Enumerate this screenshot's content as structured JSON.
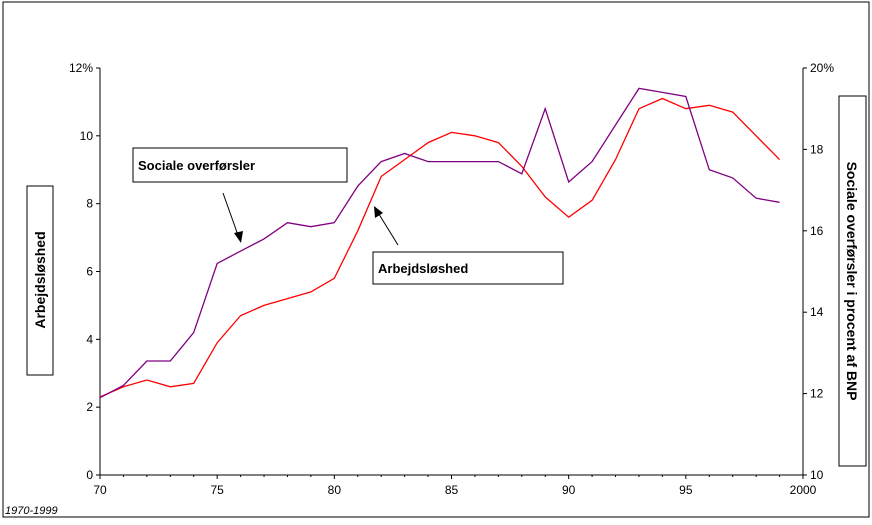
{
  "chart_data": {
    "type": "line",
    "x": [
      70,
      71,
      72,
      73,
      74,
      75,
      76,
      77,
      78,
      79,
      80,
      81,
      82,
      83,
      84,
      85,
      86,
      87,
      88,
      89,
      90,
      91,
      92,
      93,
      94,
      95,
      96,
      97,
      98,
      99
    ],
    "xlim": [
      70,
      100
    ],
    "x_ticks": [
      "70",
      "75",
      "80",
      "85",
      "90",
      "95",
      "2000"
    ],
    "y_left": {
      "label": "Arbejdsløshed",
      "lim": [
        0,
        12
      ],
      "ticks": [
        "0",
        "2",
        "4",
        "6",
        "8",
        "10",
        "12%"
      ]
    },
    "y_right": {
      "label": "Sociale overførsler i procent af BNP",
      "lim": [
        10,
        20
      ],
      "ticks": [
        "10",
        "12",
        "14",
        "16",
        "18",
        "20%"
      ]
    },
    "series": [
      {
        "name": "Arbejdsløshed",
        "axis": "left",
        "color": "#ff0000",
        "values": [
          2.3,
          2.6,
          2.8,
          2.6,
          2.7,
          3.9,
          4.7,
          5.0,
          5.2,
          5.4,
          5.8,
          7.2,
          8.8,
          9.3,
          9.8,
          10.1,
          10.0,
          9.8,
          9.1,
          8.2,
          7.6,
          8.1,
          9.3,
          10.8,
          11.1,
          10.8,
          10.9,
          10.7,
          10.0,
          9.3
        ]
      },
      {
        "name": "Sociale overførsler",
        "axis": "right",
        "color": "#800080",
        "values": [
          11.9,
          12.2,
          12.8,
          12.8,
          13.5,
          15.2,
          15.5,
          15.8,
          16.2,
          16.1,
          16.2,
          17.1,
          17.7,
          17.9,
          17.7,
          17.7,
          17.7,
          17.7,
          17.4,
          19.0,
          17.2,
          17.7,
          18.6,
          19.5,
          19.4,
          19.3,
          17.5,
          17.3,
          16.8,
          16.7
        ]
      }
    ],
    "callouts": {
      "sociale": "Sociale overførsler",
      "arbejd": "Arbejdsløshed"
    },
    "footer": "1970-1999",
    "grid": false
  }
}
